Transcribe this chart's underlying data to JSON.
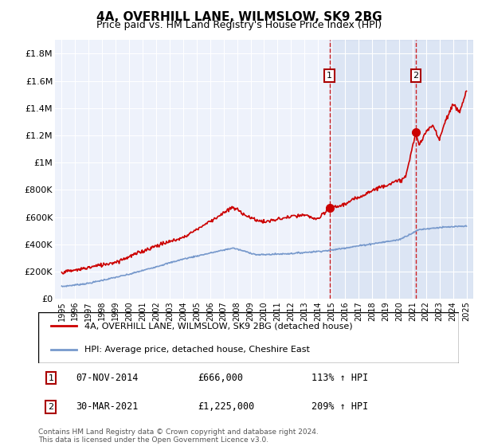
{
  "title": "4A, OVERHILL LANE, WILMSLOW, SK9 2BG",
  "subtitle": "Price paid vs. HM Land Registry's House Price Index (HPI)",
  "legend_entry1": "4A, OVERHILL LANE, WILMSLOW, SK9 2BG (detached house)",
  "legend_entry2": "HPI: Average price, detached house, Cheshire East",
  "annotation1_label": "1",
  "annotation1_date": "07-NOV-2014",
  "annotation1_price": "£666,000",
  "annotation1_hpi": "113% ↑ HPI",
  "annotation2_label": "2",
  "annotation2_date": "30-MAR-2021",
  "annotation2_price": "£1,225,000",
  "annotation2_hpi": "209% ↑ HPI",
  "footnote": "Contains HM Land Registry data © Crown copyright and database right 2024.\nThis data is licensed under the Open Government Licence v3.0.",
  "background_color": "#ffffff",
  "plot_bg_color": "#eef2fb",
  "grid_color": "#ffffff",
  "red_line_color": "#cc0000",
  "blue_line_color": "#7799cc",
  "dashed_line_color": "#cc0000",
  "marker_fill_color": "#cc0000",
  "sale1_x": 2014.85,
  "sale1_y": 666000,
  "sale2_x": 2021.25,
  "sale2_y": 1225000,
  "ylim": [
    0,
    1900000
  ],
  "xlim": [
    1994.5,
    2025.5
  ],
  "yticks": [
    0,
    200000,
    400000,
    600000,
    800000,
    1000000,
    1200000,
    1400000,
    1600000,
    1800000
  ],
  "ytick_labels": [
    "£0",
    "£200K",
    "£400K",
    "£600K",
    "£800K",
    "£1M",
    "£1.2M",
    "£1.4M",
    "£1.6M",
    "£1.8M"
  ],
  "xticks": [
    1995,
    1996,
    1997,
    1998,
    1999,
    2000,
    2001,
    2002,
    2003,
    2004,
    2005,
    2006,
    2007,
    2008,
    2009,
    2010,
    2011,
    2012,
    2013,
    2014,
    2015,
    2016,
    2017,
    2018,
    2019,
    2020,
    2021,
    2022,
    2023,
    2024,
    2025
  ]
}
